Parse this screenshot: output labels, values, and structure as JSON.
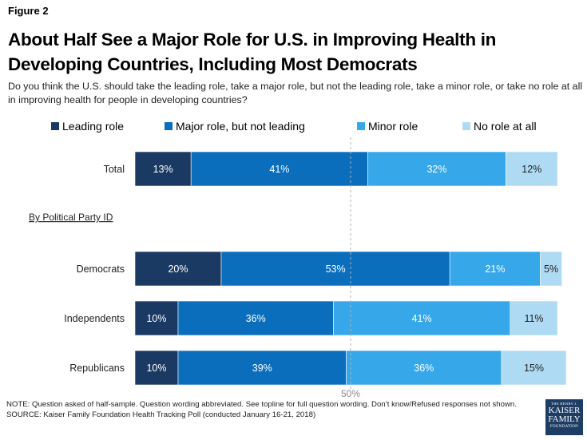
{
  "figure_label": "Figure 2",
  "title": "About Half See a Major Role for U.S. in Improving Health in Developing Countries, Including Most Democrats",
  "subtitle": "Do you think the U.S. should take the leading role, take a major role, but not the leading role, take a minor role, or take no role at all in improving health for people in developing countries?",
  "footer": {
    "note": "NOTE: Question asked of half-sample. Question wording abbreviated. See topline for full question wording. Don’t know/Refused responses not shown.",
    "source": "SOURCE: Kaiser Family Foundation Health Tracking Poll (conducted January 16-21, 2018)"
  },
  "logo": {
    "line1": "THE HENRY J.",
    "line2": "KAISER",
    "line3": "FAMILY",
    "line4": "FOUNDATION"
  },
  "chart_data": {
    "type": "bar",
    "orientation": "horizontal",
    "stacked": true,
    "categories": [
      "Total",
      "Democrats",
      "Independents",
      "Republicans"
    ],
    "group_label": "By Political Party ID",
    "series": [
      {
        "name": "Leading role",
        "values": [
          13,
          20,
          10,
          10
        ],
        "color": "#1b3a63"
      },
      {
        "name": "Major role, but not leading",
        "values": [
          41,
          53,
          36,
          39
        ],
        "color": "#0a6ebd"
      },
      {
        "name": "Minor role",
        "values": [
          32,
          21,
          41,
          36
        ],
        "color": "#36a7e9"
      },
      {
        "name": "No role at all",
        "values": [
          12,
          5,
          11,
          15
        ],
        "color": "#aedbf3"
      }
    ],
    "value_suffix": "%",
    "reference_line": {
      "value": 50,
      "label": "50%"
    },
    "legend_position": "top"
  }
}
